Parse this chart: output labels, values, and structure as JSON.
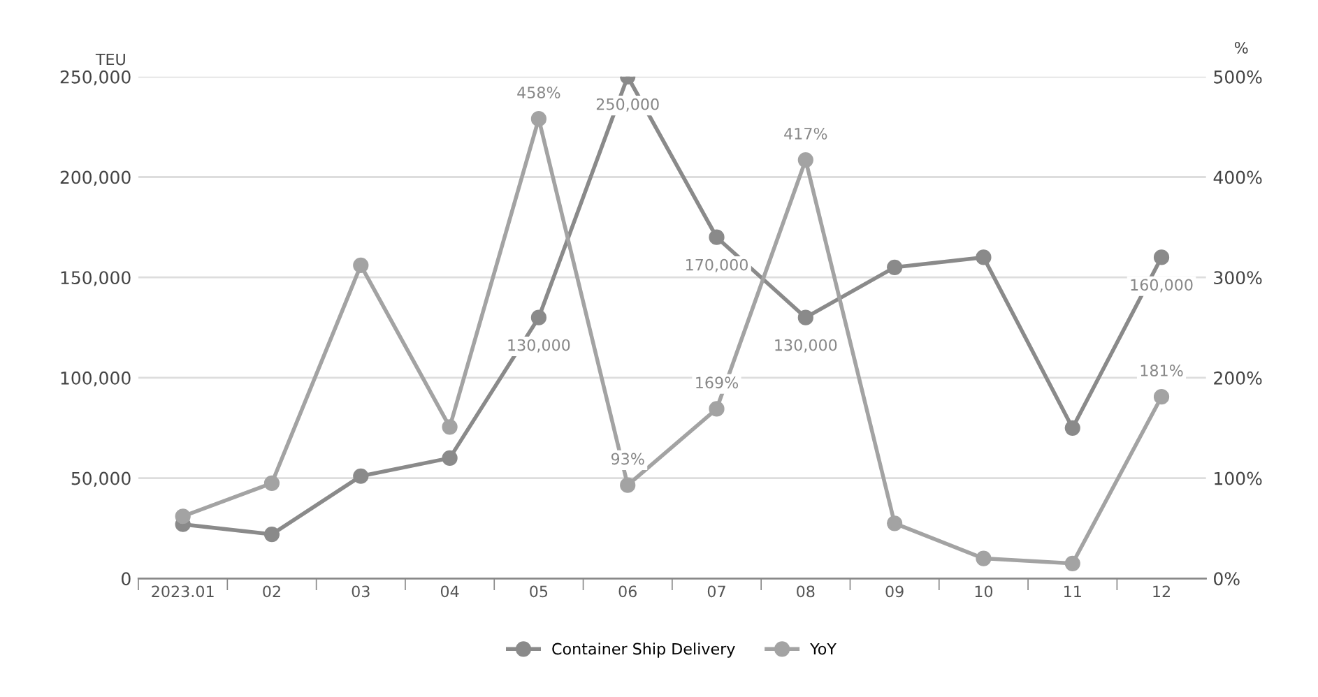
{
  "chart_data": {
    "type": "line",
    "categories": [
      "2023.01",
      "02",
      "03",
      "04",
      "05",
      "06",
      "07",
      "08",
      "09",
      "10",
      "11",
      "12"
    ],
    "ylabel": "TEU",
    "y2label": "%",
    "ylim": [
      0,
      250000
    ],
    "yticks": [
      {
        "value": 0,
        "label": "0"
      },
      {
        "value": 50000,
        "label": "50,000"
      },
      {
        "value": 100000,
        "label": "100,000"
      },
      {
        "value": 150000,
        "label": "150,000"
      },
      {
        "value": 200000,
        "label": "200,000"
      },
      {
        "value": 250000,
        "label": "250,000"
      }
    ],
    "y2lim": [
      0,
      500
    ],
    "y2ticks": [
      {
        "value": 0,
        "label": "0%"
      },
      {
        "value": 100,
        "label": "100%"
      },
      {
        "value": 200,
        "label": "200%"
      },
      {
        "value": 300,
        "label": "300%"
      },
      {
        "value": 400,
        "label": "400%"
      },
      {
        "value": 500,
        "label": "500%"
      }
    ],
    "series": [
      {
        "name": "Container Ship Delivery",
        "color": "#8a8a8a",
        "values": [
          27000,
          22000,
          51000,
          60000,
          130000,
          250000,
          170000,
          130000,
          155000,
          160000,
          75000,
          160000
        ],
        "value_labels": [
          null,
          null,
          null,
          null,
          "130,000",
          "250,000",
          "170,000",
          "130,000",
          null,
          null,
          null,
          "160,000"
        ]
      },
      {
        "name": "YoY",
        "color": "#a3a3a3",
        "axis": "y2",
        "values": [
          62,
          95,
          312,
          151,
          458,
          93,
          169,
          417,
          55,
          20,
          15,
          181
        ],
        "value_labels": [
          null,
          null,
          null,
          null,
          "458%",
          "93%",
          "169%",
          "417%",
          null,
          null,
          null,
          "181%"
        ]
      }
    ],
    "marker": "circle",
    "grid": "y",
    "legend": "bottom"
  }
}
